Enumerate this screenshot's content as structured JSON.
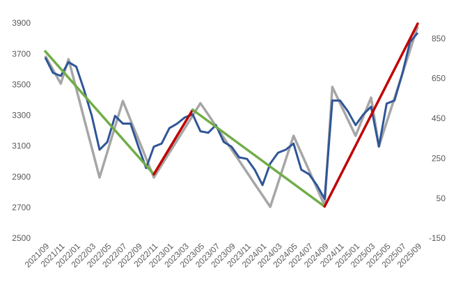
{
  "chart_data": {
    "type": "line",
    "categories": [
      "2021/09",
      null,
      "2021/11",
      null,
      "2022/01",
      null,
      "2022/03",
      null,
      "2022/05",
      null,
      "2022/07",
      null,
      "2022/09",
      null,
      "2022/11",
      null,
      "2023/01",
      null,
      "2023/03",
      null,
      "2023/05",
      null,
      "2023/07",
      null,
      "2023/09",
      null,
      "2023/11",
      null,
      "2024/01",
      null,
      "2024/03",
      null,
      "2024/05",
      null,
      "2024/07",
      null,
      "2024/09",
      null,
      "2024/11",
      null,
      "2025/01",
      null,
      "2025/03",
      null,
      "2025/05",
      null,
      "2025/07",
      null,
      "2025/09"
    ],
    "series": [
      {
        "color": "#2f5597",
        "values": [
          3680,
          3580,
          3560,
          3650,
          3620,
          3470,
          3300,
          3080,
          3130,
          3300,
          3250,
          3250,
          3100,
          2960,
          3100,
          3120,
          3220,
          3250,
          3290,
          3310,
          3200,
          3190,
          3240,
          3130,
          3100,
          3030,
          3020,
          2950,
          2850,
          2990,
          3060,
          3080,
          3120,
          2950,
          2920,
          2850,
          2760,
          3400,
          3400,
          3330,
          3240,
          3310,
          3360,
          3100,
          3380,
          3400,
          3570,
          3780,
          3840
        ]
      },
      {
        "color": "#a6a6a6",
        "axis": "y2",
        "values": [
          766,
          697,
          627,
          749,
          601,
          453,
          305,
          157,
          285,
          412,
          540,
          444,
          349,
          253,
          157,
          219,
          281,
          343,
          405,
          467,
          529,
          472,
          414,
          356,
          298,
          241,
          183,
          125,
          68,
          10,
          129,
          247,
          366,
          279,
          192,
          104,
          17,
          610,
          529,
          447,
          366,
          462,
          557,
          313,
          433,
          553,
          673,
          793,
          913
        ]
      }
    ],
    "trends": [
      {
        "color": "#70ad47",
        "x": [
          "2021/09",
          "2022/11"
        ],
        "values": [
          3720,
          2920
        ]
      },
      {
        "color": "#c00000",
        "x": [
          "2022/11",
          "2023/04"
        ],
        "values": [
          2920,
          3340
        ]
      },
      {
        "color": "#70ad47",
        "x": [
          "2023/04",
          "2024/09"
        ],
        "values": [
          3340,
          2710
        ]
      },
      {
        "color": "#c00000",
        "x": [
          "2024/09",
          "2025/09"
        ],
        "values": [
          2710,
          3900
        ]
      }
    ],
    "ylim": [
      2500,
      3900
    ],
    "yticks": [
      2500,
      2700,
      2900,
      3100,
      3300,
      3500,
      3700,
      3900
    ],
    "y2lim": [
      -150,
      927
    ],
    "y2ticks": [
      -150,
      50,
      250,
      450,
      650,
      850
    ]
  }
}
